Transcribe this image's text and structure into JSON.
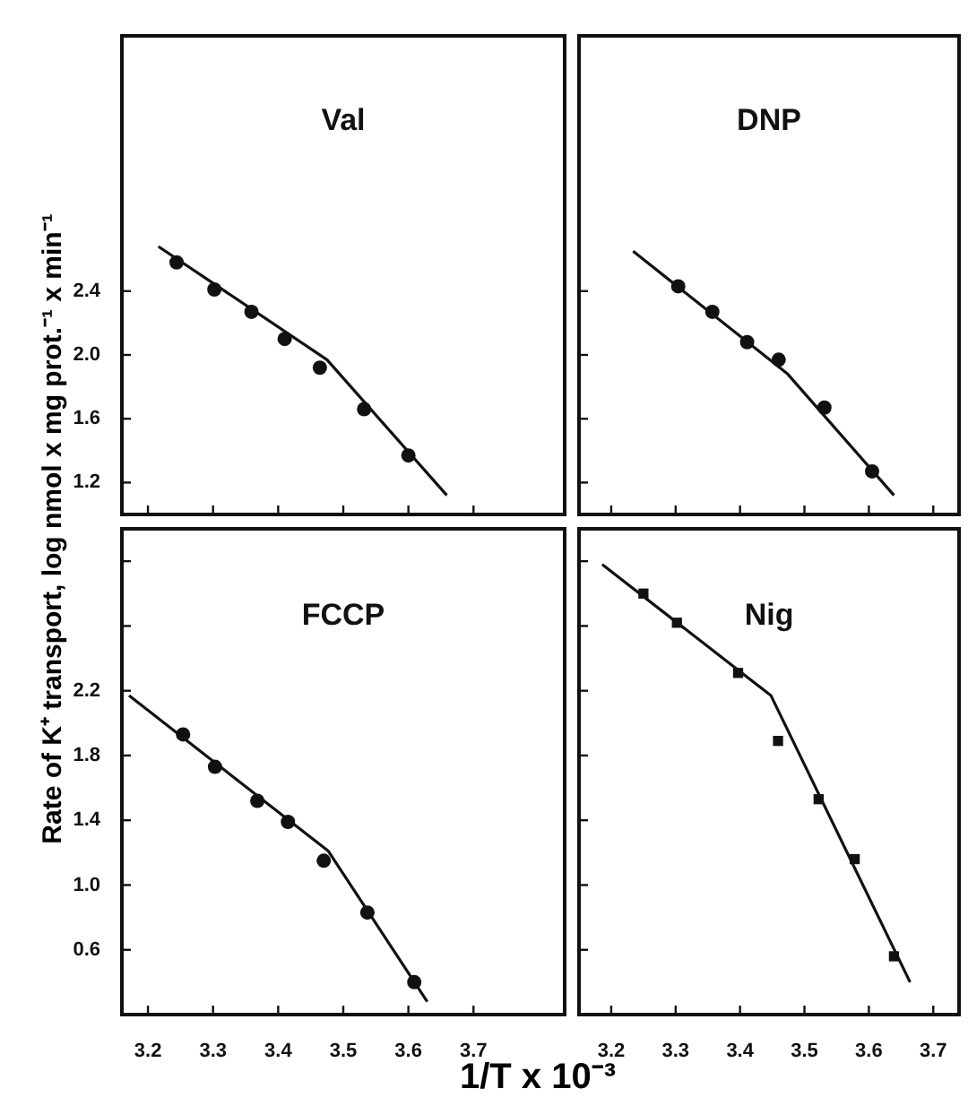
{
  "chart_data": [
    {
      "type": "scatter",
      "title": "Val",
      "xlim": [
        3.16,
        3.84
      ],
      "ylim": [
        1.0,
        4.0
      ],
      "xticks": [
        3.2,
        3.3,
        3.4,
        3.5,
        3.6,
        3.7
      ],
      "yticks": [
        1.2,
        1.6,
        {
          "value": 2,
          "label": "2.0"
        },
        2.4
      ],
      "tick_labels": "y",
      "series": [
        {
          "type": "line",
          "color": "#111111",
          "marker": "none",
          "line_style": "solid",
          "x": [
            3.216,
            3.475,
            3.659
          ],
          "values": [
            2.68,
            1.97,
            1.12
          ]
        },
        {
          "type": "scatter",
          "color": "#111111",
          "marker": "circle",
          "x": [
            3.244,
            3.302,
            3.359,
            3.41,
            3.464,
            3.532,
            3.6
          ],
          "values": [
            2.58,
            2.41,
            2.27,
            2.1,
            1.92,
            1.66,
            1.37
          ]
        }
      ]
    },
    {
      "type": "scatter",
      "title": "DNP",
      "xlim": [
        3.15,
        3.74
      ],
      "ylim": [
        1.0,
        4.0
      ],
      "xticks": [
        3.2,
        3.3,
        3.4,
        3.5,
        3.6,
        3.7
      ],
      "yticks": [
        1.2,
        1.6,
        2.0,
        2.4
      ],
      "tick_labels": false,
      "series": [
        {
          "type": "line",
          "color": "#111111",
          "marker": "none",
          "line_style": "solid",
          "x": [
            3.234,
            3.474,
            3.639
          ],
          "values": [
            2.65,
            1.88,
            1.12
          ]
        },
        {
          "type": "scatter",
          "color": "#111111",
          "marker": "circle",
          "x": [
            3.304,
            3.357,
            3.411,
            3.46,
            3.531,
            3.605
          ],
          "values": [
            2.43,
            2.27,
            2.08,
            1.97,
            1.67,
            1.27
          ]
        }
      ]
    },
    {
      "type": "scatter",
      "title": "FCCP",
      "xlabel": "1/T x 10⁻³",
      "ylabel": "Rate of K⁺ transport, log nmol x mg prot.⁻¹ x min⁻¹",
      "xlim": [
        3.16,
        3.84
      ],
      "ylim": [
        0.2,
        3.2
      ],
      "xticks": [
        3.2,
        3.3,
        3.4,
        3.5,
        3.6,
        3.7
      ],
      "yticks": [
        0.6,
        {
          "value": 1,
          "label": "1.0"
        },
        1.4,
        1.8,
        2.2,
        {
          "value": 2.6,
          "label": null
        },
        {
          "value": 3,
          "label": null
        }
      ],
      "series": [
        {
          "type": "line",
          "color": "#111111",
          "marker": "none",
          "line_style": "solid",
          "x": [
            3.171,
            3.477,
            3.629
          ],
          "values": [
            2.17,
            1.21,
            0.28
          ]
        },
        {
          "type": "scatter",
          "color": "#111111",
          "marker": "circle",
          "x": [
            3.254,
            3.303,
            3.368,
            3.415,
            3.47,
            3.537,
            3.609
          ],
          "values": [
            1.93,
            1.73,
            1.52,
            1.39,
            1.15,
            0.83,
            0.4
          ]
        }
      ]
    },
    {
      "type": "scatter",
      "title": "Nig",
      "xlim": [
        3.15,
        3.74
      ],
      "ylim": [
        0.2,
        3.2
      ],
      "xticks": [
        3.2,
        3.3,
        3.4,
        3.5,
        3.6,
        3.7
      ],
      "yticks": [
        0.6,
        1.0,
        1.4,
        1.8,
        2.2,
        2.6,
        3.0
      ],
      "tick_labels": "x",
      "series": [
        {
          "type": "line",
          "color": "#111111",
          "marker": "none",
          "line_style": "solid",
          "x": [
            3.186,
            3.448,
            3.664
          ],
          "values": [
            2.98,
            2.17,
            0.4
          ]
        },
        {
          "type": "scatter",
          "color": "#111111",
          "marker": "square",
          "x": [
            3.25,
            3.302,
            3.397,
            3.459,
            3.522,
            3.578,
            3.639
          ],
          "values": [
            2.8,
            2.62,
            2.31,
            1.89,
            1.53,
            1.16,
            0.56
          ]
        }
      ]
    }
  ]
}
